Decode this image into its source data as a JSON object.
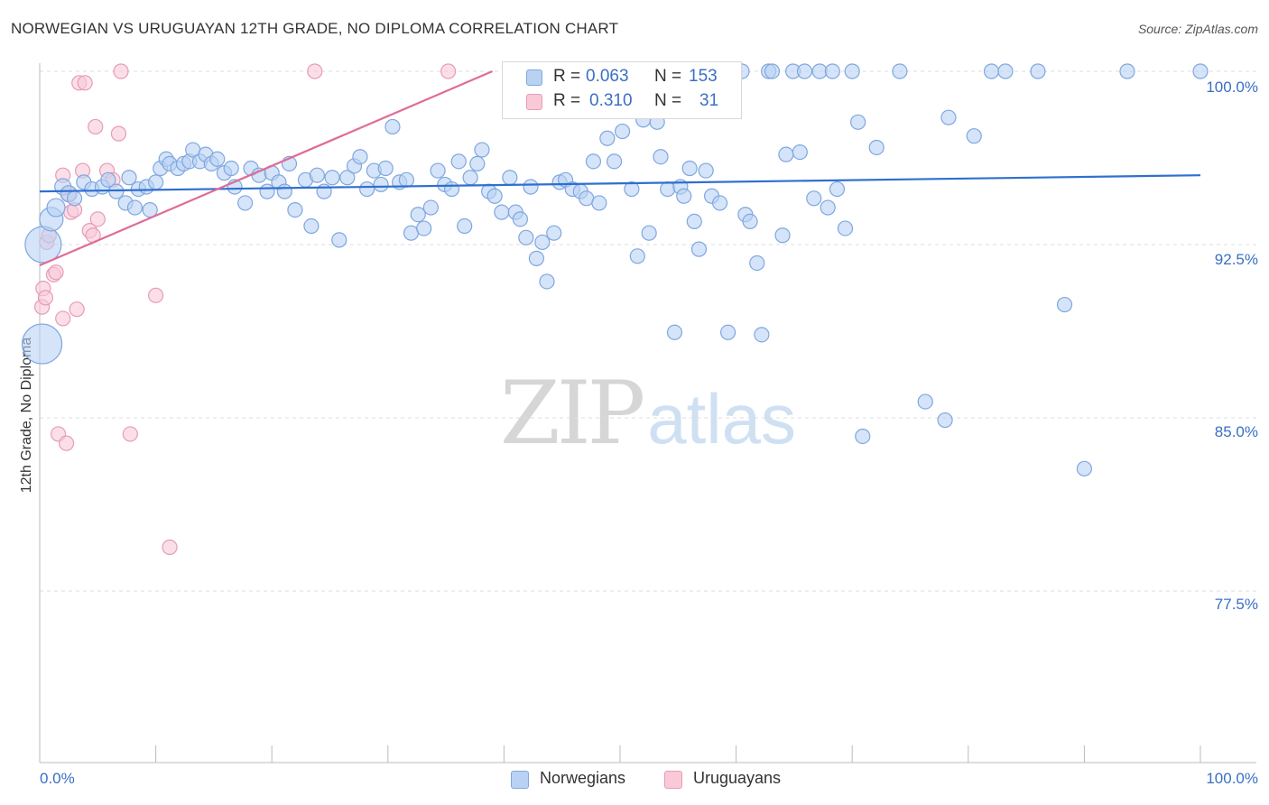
{
  "title": "NORWEGIAN VS URUGUAYAN 12TH GRADE, NO DIPLOMA CORRELATION CHART",
  "source": "Source: ZipAtlas.com",
  "watermark": {
    "zip": "ZIP",
    "atlas": "atlas"
  },
  "legend_top": {
    "rows": [
      {
        "r_label": "R =",
        "r_value": "0.063",
        "n_label": "N =",
        "n_value": "153"
      },
      {
        "r_label": "R =",
        "r_value": "0.310",
        "n_label": "N =",
        "n_value": "31"
      }
    ]
  },
  "legend_bottom": {
    "norwegians": "Norwegians",
    "uruguayans": "Uruguayans"
  },
  "colors": {
    "blue_fill": "#b9d2f3",
    "blue_stroke": "#7fa7e0",
    "blue_line": "#2f6fd0",
    "pink_fill": "#f9c9d8",
    "pink_stroke": "#e89bb5",
    "pink_line": "#e06c96",
    "tick_text": "#3a6fc4",
    "grid": "#dddddd"
  },
  "chart_data": {
    "type": "scatter",
    "title": "NORWEGIAN VS URUGUAYAN 12TH GRADE, NO DIPLOMA CORRELATION CHART",
    "xlabel": "",
    "ylabel": "12th Grade, No Diploma",
    "xlim": [
      0,
      100
    ],
    "ylim": [
      70,
      101.5
    ],
    "x_tick_labels": [
      "0.0%",
      "100.0%"
    ],
    "y_ticks": [
      100.0,
      92.5,
      85.0,
      77.5
    ],
    "y_tick_labels": [
      "100.0%",
      "92.5%",
      "85.0%",
      "77.5%"
    ],
    "series": [
      {
        "name": "Norwegians",
        "r": 0.063,
        "n": 153,
        "trend": {
          "x": [
            0,
            100
          ],
          "y": [
            94.8,
            95.5
          ]
        },
        "points": [
          [
            0.3,
            92.5,
            20
          ],
          [
            0.2,
            88.2,
            22
          ],
          [
            1.0,
            93.6,
            13
          ],
          [
            1.4,
            94.1,
            10
          ],
          [
            2.0,
            95.0,
            9
          ],
          [
            2.5,
            94.7,
            9
          ],
          [
            3.0,
            94.5,
            8
          ],
          [
            3.8,
            95.2,
            8
          ],
          [
            4.5,
            94.9,
            8
          ],
          [
            5.4,
            95.0,
            8
          ],
          [
            5.9,
            95.3,
            8
          ],
          [
            6.6,
            94.8,
            8
          ],
          [
            7.4,
            94.3,
            8
          ],
          [
            7.7,
            95.4,
            8
          ],
          [
            8.2,
            94.1,
            8
          ],
          [
            8.5,
            94.9,
            8
          ],
          [
            9.2,
            95.0,
            8
          ],
          [
            9.5,
            94.0,
            8
          ],
          [
            10.0,
            95.2,
            8
          ],
          [
            10.4,
            95.8,
            8
          ],
          [
            10.9,
            96.2,
            8
          ],
          [
            11.2,
            96.0,
            8
          ],
          [
            11.9,
            95.8,
            8
          ],
          [
            12.4,
            96.0,
            8
          ],
          [
            12.9,
            96.1,
            8
          ],
          [
            13.2,
            96.6,
            8
          ],
          [
            13.8,
            96.1,
            8
          ],
          [
            14.3,
            96.4,
            8
          ],
          [
            14.8,
            96.0,
            8
          ],
          [
            15.3,
            96.2,
            8
          ],
          [
            15.9,
            95.6,
            8
          ],
          [
            16.5,
            95.8,
            8
          ],
          [
            16.8,
            95.0,
            8
          ],
          [
            17.7,
            94.3,
            8
          ],
          [
            18.2,
            95.8,
            8
          ],
          [
            18.9,
            95.5,
            8
          ],
          [
            19.6,
            94.8,
            8
          ],
          [
            20.0,
            95.6,
            8
          ],
          [
            20.6,
            95.2,
            8
          ],
          [
            21.1,
            94.8,
            8
          ],
          [
            21.5,
            96.0,
            8
          ],
          [
            22.0,
            94.0,
            8
          ],
          [
            22.9,
            95.3,
            8
          ],
          [
            23.4,
            93.3,
            8
          ],
          [
            23.9,
            95.5,
            8
          ],
          [
            24.5,
            94.8,
            8
          ],
          [
            25.2,
            95.4,
            8
          ],
          [
            25.8,
            92.7,
            8
          ],
          [
            26.5,
            95.4,
            8
          ],
          [
            27.1,
            95.9,
            8
          ],
          [
            27.6,
            96.3,
            8
          ],
          [
            28.2,
            94.9,
            8
          ],
          [
            28.8,
            95.7,
            8
          ],
          [
            29.4,
            95.1,
            8
          ],
          [
            29.8,
            95.8,
            8
          ],
          [
            30.4,
            97.6,
            8
          ],
          [
            31.0,
            95.2,
            8
          ],
          [
            31.6,
            95.3,
            8
          ],
          [
            32.0,
            93.0,
            8
          ],
          [
            32.6,
            93.8,
            8
          ],
          [
            33.1,
            93.2,
            8
          ],
          [
            33.7,
            94.1,
            8
          ],
          [
            34.3,
            95.7,
            8
          ],
          [
            34.9,
            95.1,
            8
          ],
          [
            35.5,
            94.9,
            8
          ],
          [
            36.1,
            96.1,
            8
          ],
          [
            36.6,
            93.3,
            8
          ],
          [
            37.1,
            95.4,
            8
          ],
          [
            37.7,
            96.0,
            8
          ],
          [
            38.1,
            96.6,
            8
          ],
          [
            38.7,
            94.8,
            8
          ],
          [
            39.2,
            94.6,
            8
          ],
          [
            39.8,
            93.9,
            8
          ],
          [
            40.5,
            95.4,
            8
          ],
          [
            41.0,
            93.9,
            8
          ],
          [
            41.4,
            93.6,
            8
          ],
          [
            41.9,
            92.8,
            8
          ],
          [
            42.3,
            95.0,
            8
          ],
          [
            42.8,
            91.9,
            8
          ],
          [
            43.3,
            92.6,
            8
          ],
          [
            43.7,
            90.9,
            8
          ],
          [
            44.3,
            93.0,
            8
          ],
          [
            44.8,
            95.2,
            8
          ],
          [
            45.3,
            95.3,
            8
          ],
          [
            45.9,
            94.9,
            8
          ],
          [
            46.6,
            94.8,
            8
          ],
          [
            47.1,
            94.5,
            8
          ],
          [
            47.7,
            96.1,
            8
          ],
          [
            48.2,
            94.3,
            8
          ],
          [
            48.9,
            97.1,
            8
          ],
          [
            49.5,
            96.1,
            8
          ],
          [
            50.2,
            97.4,
            8
          ],
          [
            51.0,
            94.9,
            8
          ],
          [
            51.5,
            92.0,
            8
          ],
          [
            52.0,
            97.9,
            8
          ],
          [
            52.5,
            93.0,
            8
          ],
          [
            53.2,
            97.8,
            8
          ],
          [
            53.5,
            96.3,
            8
          ],
          [
            54.1,
            94.9,
            8
          ],
          [
            54.7,
            88.7,
            8
          ],
          [
            55.2,
            95.0,
            8
          ],
          [
            55.5,
            94.6,
            8
          ],
          [
            56.0,
            95.8,
            8
          ],
          [
            56.4,
            93.5,
            8
          ],
          [
            56.8,
            92.3,
            8
          ],
          [
            57.4,
            95.7,
            8
          ],
          [
            57.9,
            94.6,
            8
          ],
          [
            58.6,
            94.3,
            8
          ],
          [
            59.3,
            88.7,
            8
          ],
          [
            60.5,
            100.0,
            8
          ],
          [
            60.8,
            93.8,
            8
          ],
          [
            61.2,
            93.5,
            8
          ],
          [
            61.8,
            91.7,
            8
          ],
          [
            62.2,
            88.6,
            8
          ],
          [
            62.8,
            100.0,
            8
          ],
          [
            63.1,
            100.0,
            8
          ],
          [
            64.0,
            92.9,
            8
          ],
          [
            64.3,
            96.4,
            8
          ],
          [
            64.9,
            100.0,
            8
          ],
          [
            65.5,
            96.5,
            8
          ],
          [
            65.9,
            100.0,
            8
          ],
          [
            66.7,
            94.5,
            8
          ],
          [
            67.2,
            100.0,
            8
          ],
          [
            67.9,
            94.1,
            8
          ],
          [
            68.3,
            100.0,
            8
          ],
          [
            68.7,
            94.9,
            8
          ],
          [
            69.4,
            93.2,
            8
          ],
          [
            70.0,
            100.0,
            8
          ],
          [
            70.5,
            97.8,
            8
          ],
          [
            70.9,
            84.2,
            8
          ],
          [
            72.1,
            96.7,
            8
          ],
          [
            74.1,
            100.0,
            8
          ],
          [
            76.3,
            85.7,
            8
          ],
          [
            78.0,
            84.9,
            8
          ],
          [
            78.3,
            98.0,
            8
          ],
          [
            80.5,
            97.2,
            8
          ],
          [
            82.0,
            100.0,
            8
          ],
          [
            83.2,
            100.0,
            8
          ],
          [
            86.0,
            100.0,
            8
          ],
          [
            88.3,
            89.9,
            8
          ],
          [
            90.0,
            82.8,
            8
          ],
          [
            93.7,
            100.0,
            8
          ],
          [
            100.0,
            100.0,
            8
          ]
        ]
      },
      {
        "name": "Uruguayans",
        "r": 0.31,
        "n": 31,
        "trend": {
          "x": [
            0,
            39
          ],
          "y": [
            91.6,
            100.0
          ]
        },
        "points": [
          [
            0.2,
            89.8,
            8
          ],
          [
            0.3,
            90.6,
            8
          ],
          [
            0.5,
            90.2,
            8
          ],
          [
            0.6,
            92.6,
            8
          ],
          [
            0.8,
            92.9,
            8
          ],
          [
            1.2,
            91.2,
            8
          ],
          [
            1.4,
            91.3,
            8
          ],
          [
            1.6,
            84.3,
            8
          ],
          [
            2.0,
            95.5,
            8
          ],
          [
            2.3,
            83.9,
            8
          ],
          [
            2.5,
            94.7,
            8
          ],
          [
            2.7,
            93.9,
            8
          ],
          [
            3.0,
            94.0,
            8
          ],
          [
            3.2,
            89.7,
            8
          ],
          [
            3.4,
            99.5,
            8
          ],
          [
            3.7,
            95.7,
            8
          ],
          [
            3.9,
            99.5,
            8
          ],
          [
            4.3,
            93.1,
            8
          ],
          [
            4.6,
            92.9,
            8
          ],
          [
            4.8,
            97.6,
            8
          ],
          [
            5.0,
            93.6,
            8
          ],
          [
            5.8,
            95.7,
            8
          ],
          [
            6.3,
            95.3,
            8
          ],
          [
            6.8,
            97.3,
            8
          ],
          [
            7.0,
            100.0,
            8
          ],
          [
            7.8,
            84.3,
            8
          ],
          [
            10.0,
            90.3,
            8
          ],
          [
            11.2,
            79.4,
            8
          ],
          [
            2.0,
            89.3,
            8
          ],
          [
            23.7,
            100.0,
            8
          ],
          [
            35.2,
            100.0,
            8
          ]
        ]
      }
    ]
  }
}
